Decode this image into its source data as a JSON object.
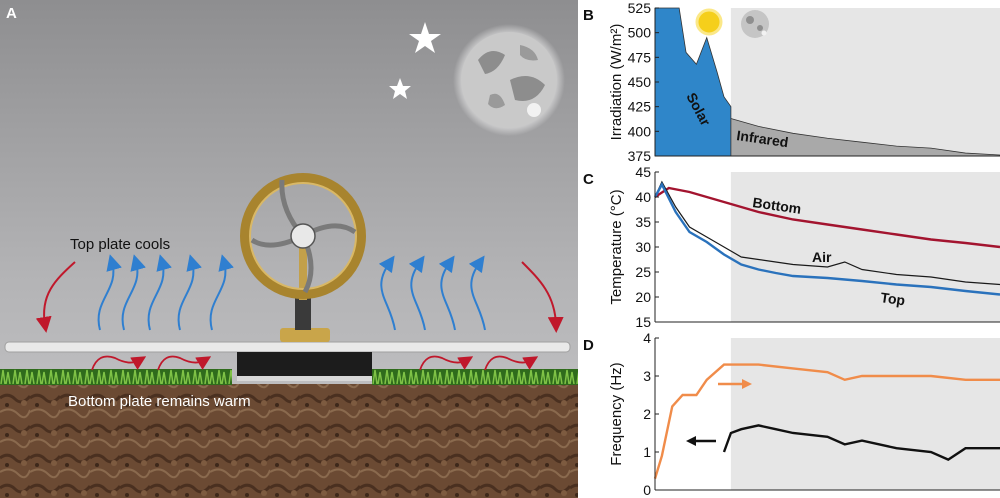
{
  "panel_a": {
    "letter": "A",
    "top_text": "Top plate cools",
    "bottom_text": "Bottom plate remains warm"
  },
  "chart_data": [
    {
      "panel": "B",
      "type": "area",
      "ylabel": "Irradiation (W/m²)",
      "ylim": [
        375,
        525
      ],
      "yticks": [
        375,
        400,
        425,
        450,
        475,
        500,
        525
      ],
      "xlim": [
        0,
        1
      ],
      "night_start": 0.22,
      "series": [
        {
          "name": "Solar",
          "color": "#2f86c9",
          "x": [
            0,
            0.04,
            0.07,
            0.09,
            0.12,
            0.15,
            0.18,
            0.2,
            0.22
          ],
          "values": [
            525,
            525,
            525,
            480,
            468,
            495,
            460,
            435,
            425
          ]
        },
        {
          "name": "Infrared",
          "color": "#a9a9a9",
          "x": [
            0,
            0.05,
            0.1,
            0.15,
            0.2,
            0.22,
            0.3,
            0.4,
            0.5,
            0.6,
            0.7,
            0.8,
            0.9,
            1
          ],
          "values": [
            432,
            428,
            422,
            425,
            418,
            413,
            405,
            398,
            393,
            389,
            385,
            383,
            378,
            376
          ]
        }
      ]
    },
    {
      "panel": "C",
      "type": "line",
      "ylabel": "Temperature (°C)",
      "ylim": [
        15,
        45
      ],
      "yticks": [
        15,
        20,
        25,
        30,
        35,
        40,
        45
      ],
      "xlim": [
        0,
        1
      ],
      "night_start": 0.22,
      "series": [
        {
          "name": "Bottom",
          "color": "#a3142f",
          "x": [
            0,
            0.04,
            0.1,
            0.2,
            0.3,
            0.4,
            0.5,
            0.6,
            0.7,
            0.8,
            0.9,
            1
          ],
          "values": [
            40,
            41.8,
            41,
            39,
            37,
            35.5,
            34.5,
            33.5,
            32.5,
            31.5,
            30.8,
            30
          ]
        },
        {
          "name": "Air",
          "color": "#1a1a1a",
          "x": [
            0,
            0.02,
            0.06,
            0.1,
            0.15,
            0.2,
            0.25,
            0.3,
            0.35,
            0.4,
            0.5,
            0.55,
            0.6,
            0.7,
            0.8,
            0.9,
            1
          ],
          "values": [
            40,
            43,
            38,
            34,
            32,
            30,
            28,
            27.5,
            27,
            26.5,
            26,
            27,
            25.5,
            24.5,
            24,
            23,
            22.5
          ]
        },
        {
          "name": "Top",
          "color": "#2a72bc",
          "x": [
            0,
            0.02,
            0.06,
            0.1,
            0.15,
            0.2,
            0.25,
            0.3,
            0.35,
            0.4,
            0.5,
            0.6,
            0.7,
            0.8,
            0.9,
            1
          ],
          "values": [
            40,
            42.5,
            37,
            33,
            31,
            28.5,
            26.5,
            25.5,
            24.8,
            24.2,
            23.8,
            23.2,
            22.5,
            22,
            21.2,
            20.5
          ]
        }
      ]
    },
    {
      "panel": "D",
      "type": "line",
      "ylabel": "Frequency (Hz)",
      "ylim": [
        0,
        4
      ],
      "yticks": [
        0,
        1,
        2,
        3,
        4
      ],
      "xlim": [
        0,
        1
      ],
      "night_start": 0.22,
      "series": [
        {
          "name": "",
          "color": "#f08c4a",
          "x": [
            0,
            0.02,
            0.05,
            0.08,
            0.12,
            0.15,
            0.2,
            0.3,
            0.4,
            0.5,
            0.55,
            0.6,
            0.7,
            0.8,
            0.9,
            1
          ],
          "values": [
            0.3,
            0.9,
            2.2,
            2.5,
            2.5,
            2.9,
            3.3,
            3.3,
            3.2,
            3.1,
            2.9,
            3.0,
            3.0,
            3.0,
            2.9,
            2.9
          ]
        },
        {
          "name": "",
          "color": "#111111",
          "x": [
            0.2,
            0.22,
            0.25,
            0.3,
            0.35,
            0.4,
            0.5,
            0.55,
            0.6,
            0.7,
            0.8,
            0.85,
            0.9,
            1
          ],
          "values": [
            1.0,
            1.5,
            1.6,
            1.7,
            1.6,
            1.5,
            1.4,
            1.2,
            1.3,
            1.1,
            1.0,
            0.8,
            1.1,
            1.1
          ]
        }
      ]
    }
  ],
  "labels": {
    "b_solar": "Solar",
    "b_infrared": "Infrared",
    "c_bottom": "Bottom",
    "c_air": "Air",
    "c_top": "Top"
  }
}
